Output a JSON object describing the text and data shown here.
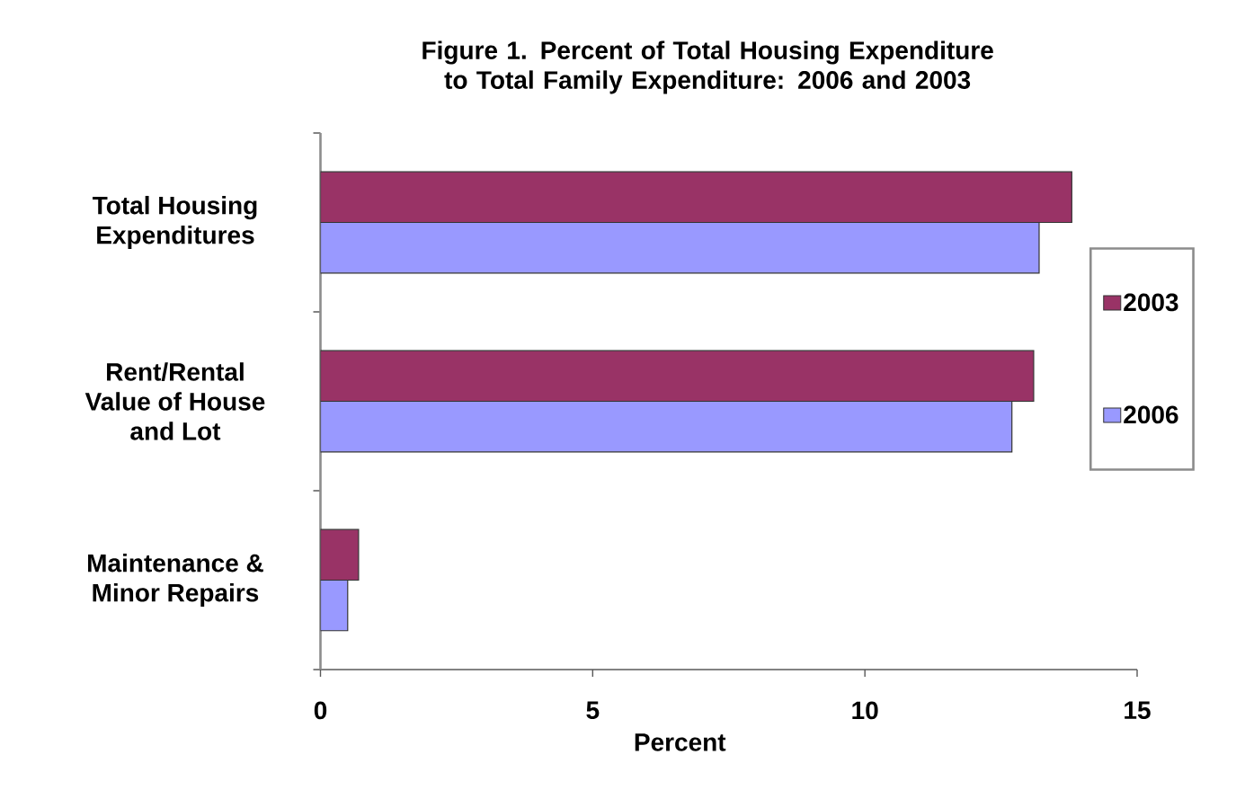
{
  "chart_data": {
    "type": "bar",
    "orientation": "horizontal",
    "title": "Figure 1. Percent of Total Housing Expenditure to Total Family Expenditure: 2006 and 2003",
    "xlabel": "Percent",
    "categories": [
      "Total Housing Expenditures",
      "Rent/Rental Value of House and Lot",
      "Maintenance & Minor Repairs"
    ],
    "series": [
      {
        "name": "2003",
        "color": "#993366",
        "values": [
          13.8,
          13.1,
          0.7
        ]
      },
      {
        "name": "2006",
        "color": "#9999ff",
        "values": [
          13.2,
          12.7,
          0.5
        ]
      }
    ],
    "xlim": [
      0,
      15
    ],
    "xticks": [
      0,
      5,
      10,
      15
    ],
    "legend": "right"
  }
}
